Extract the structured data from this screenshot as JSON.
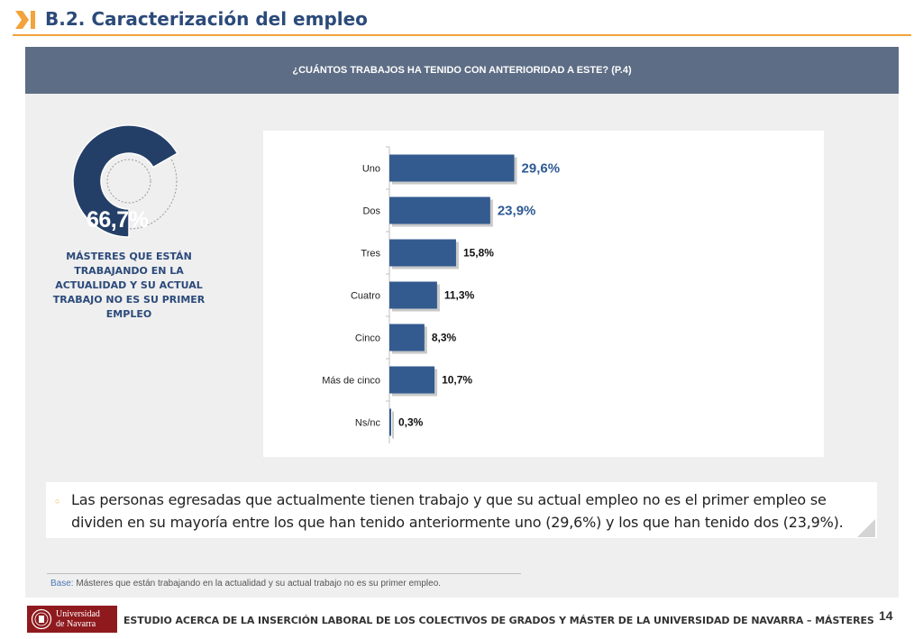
{
  "header": {
    "title": "B.2. Caracterización del empleo",
    "accent_color": "#f2a33a",
    "icon": "chevron-bar-icon"
  },
  "question": "¿CUÁNTOS TRABAJOS HA TENIDO CON ANTERIORIDAD A ESTE? (P.4)",
  "summary": {
    "value_label": "66,7%",
    "value": 66.7,
    "caption_lines": [
      "MÁSTERES QUE ESTÁN",
      "TRABAJANDO EN LA",
      "ACTUALIDAD Y SU ACTUAL",
      "TRABAJO NO ES SU PRIMER",
      "EMPLEO"
    ],
    "fill_color": "#243f67"
  },
  "chart_data": {
    "type": "bar",
    "orientation": "horizontal",
    "categories": [
      "Uno",
      "Dos",
      "Tres",
      "Cuatro",
      "Cinco",
      "Más de cinco",
      "Ns/nc"
    ],
    "values": [
      29.6,
      23.9,
      15.8,
      11.3,
      8.3,
      10.7,
      0.3
    ],
    "value_labels": [
      "29,6%",
      "23,9%",
      "15,8%",
      "11,3%",
      "8,3%",
      "10,7%",
      "0,3%"
    ],
    "highlighted": [
      true,
      true,
      false,
      false,
      false,
      false,
      false
    ],
    "bar_color": "#335b8f",
    "highlight_label_color": "#2e5a95",
    "label_color": "#111111",
    "xlim": [
      0,
      100
    ],
    "grid": false
  },
  "note": {
    "text": "Las personas egresadas que actualmente tienen trabajo y que su actual empleo no es el primer empleo se dividen en su mayoría entre los que han tenido anteriormente uno (29,6%) y los que han tenido dos (23,9%).",
    "bullet": "○"
  },
  "base": {
    "label": "Base:",
    "text": "Másteres que están trabajando en la actualidad y su actual trabajo no es su primer empleo."
  },
  "footer": {
    "logo_lines": [
      "Universidad",
      "de Navarra"
    ],
    "text": "ESTUDIO ACERCA DE LA INSERCIÓN LABORAL DE LOS COLECTIVOS DE GRADOS Y MÁSTER DE LA UNIVERSIDAD DE NAVARRA – MÁSTERES",
    "page_number": "14",
    "brand_color": "#8f1a1e"
  }
}
